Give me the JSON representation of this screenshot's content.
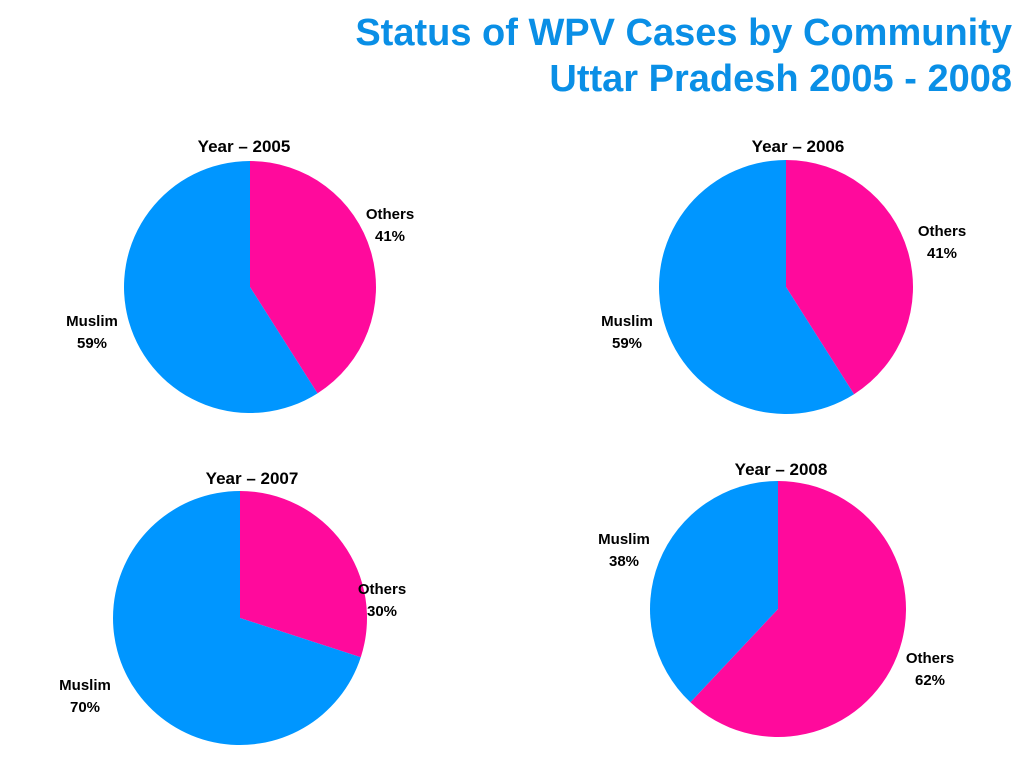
{
  "title": {
    "line1": "Status of WPV Cases by Community",
    "line2": "Uttar Pradesh 2005 - 2008"
  },
  "colors": {
    "Others": "#FF0A9C",
    "Muslim": "#0096FF",
    "title": "#0A8FE6"
  },
  "chart_data": [
    {
      "type": "pie",
      "title": "Year – 2005",
      "slices": [
        {
          "label": "Others",
          "value": 41,
          "value_label": "41%"
        },
        {
          "label": "Muslim",
          "value": 59,
          "value_label": "59%"
        }
      ]
    },
    {
      "type": "pie",
      "title": "Year – 2006",
      "slices": [
        {
          "label": "Others",
          "value": 41,
          "value_label": "41%"
        },
        {
          "label": "Muslim",
          "value": 59,
          "value_label": "59%"
        }
      ]
    },
    {
      "type": "pie",
      "title": "Year – 2007",
      "slices": [
        {
          "label": "Others",
          "value": 30,
          "value_label": "30%"
        },
        {
          "label": "Muslim",
          "value": 70,
          "value_label": "70%"
        }
      ]
    },
    {
      "type": "pie",
      "title": "Year – 2008",
      "slices": [
        {
          "label": "Others",
          "value": 62,
          "value_label": "62%"
        },
        {
          "label": "Muslim",
          "value": 38,
          "value_label": "38%"
        }
      ]
    }
  ]
}
